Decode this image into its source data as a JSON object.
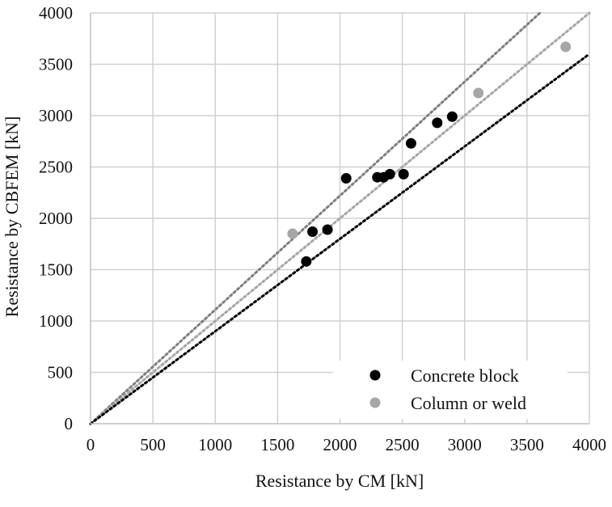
{
  "chart_data": {
    "type": "scatter",
    "title": "",
    "xlabel": "Resistance by CM [kN]",
    "ylabel": "Resistance by CBFEM [kN]",
    "xlim": [
      0,
      4000
    ],
    "ylim": [
      0,
      4000
    ],
    "x_ticks": [
      0,
      500,
      1000,
      1500,
      2000,
      2500,
      3000,
      3500,
      4000
    ],
    "y_ticks": [
      0,
      500,
      1000,
      1500,
      2000,
      2500,
      3000,
      3500,
      4000
    ],
    "grid": true,
    "legend_position": "bottom-right",
    "series": [
      {
        "name": "Concrete block",
        "color": "#000000",
        "points": [
          [
            1730,
            1580
          ],
          [
            1780,
            1870
          ],
          [
            1900,
            1890
          ],
          [
            2050,
            2390
          ],
          [
            2300,
            2400
          ],
          [
            2350,
            2400
          ],
          [
            2400,
            2430
          ],
          [
            2510,
            2430
          ],
          [
            2570,
            2730
          ],
          [
            2780,
            2930
          ],
          [
            2900,
            2990
          ]
        ]
      },
      {
        "name": "Column or weld",
        "color": "#a6a6a6",
        "points": [
          [
            1620,
            1850
          ],
          [
            3110,
            3220
          ],
          [
            3810,
            3670
          ]
        ]
      }
    ],
    "reference_lines": [
      {
        "slope": 1.11,
        "color": "#7f7f7f"
      },
      {
        "slope": 1.0,
        "color": "#a6a6a6"
      },
      {
        "slope": 0.9,
        "color": "#000000"
      }
    ]
  }
}
